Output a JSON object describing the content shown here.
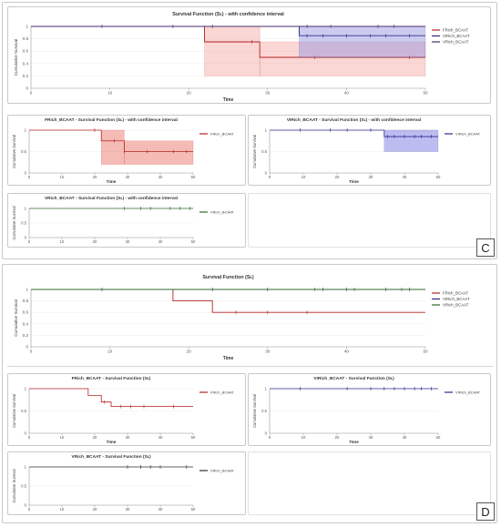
{
  "panel_labels": [
    "C",
    "D"
  ],
  "chart_data": [
    {
      "type": "line",
      "title": "Survival Function (Sʟ) - with confidence interval",
      "xlabel": "Time",
      "ylabel": "Cumulative Survival",
      "xlim": [
        0,
        50
      ],
      "ylim": [
        0,
        1
      ],
      "xticks": [
        0,
        10,
        20,
        30,
        40,
        50
      ],
      "xtick_labels": [
        "0",
        "10",
        "20",
        "30",
        "40",
        "50"
      ],
      "yticks": [
        0,
        0.2,
        0.4,
        0.6,
        0.8,
        1
      ],
      "ytick_labels": [
        "0",
        "0.2",
        "0.4",
        "0.6",
        "0.8",
        "1"
      ],
      "legend_position": "right",
      "series": [
        {
          "name": "FRich_BCAAT",
          "color": "#b22222",
          "x": [
            0,
            22,
            29,
            50
          ],
          "y": [
            1,
            0.75,
            0.5,
            0.5
          ],
          "ci": [
            [
              0,
              22,
              1,
              1
            ],
            [
              22,
              29,
              0.2,
              1
            ],
            [
              29,
              50,
              0.2,
              0.75
            ]
          ],
          "ci_color": "#f4a6a0",
          "censor_x": [
            28,
            36,
            48
          ]
        },
        {
          "name": "VIRich_BCAAT",
          "color": "#2b2b8c",
          "x": [
            0,
            34,
            50
          ],
          "y": [
            1,
            0.85,
            0.85
          ],
          "ci": [
            [
              34,
              50,
              0.5,
              1
            ]
          ],
          "ci_color": "#8f8fe0",
          "censor_x": [
            9,
            18,
            23,
            35,
            37,
            40,
            43,
            45,
            48
          ]
        },
        {
          "name": "VRich_BCAAT",
          "color": "#4b2e6b",
          "x": [
            0,
            50
          ],
          "y": [
            1,
            1
          ],
          "ci": [],
          "ci_color": "#cf92e8",
          "censor_x": [
            35,
            38,
            44,
            46
          ]
        }
      ]
    },
    {
      "type": "line",
      "title": "FRich_BCAAT - Survival Function (Sʟ) - with confidence interval",
      "xlabel": "Time",
      "ylabel": "Cumulative Survival",
      "xlim": [
        0,
        50
      ],
      "ylim": [
        0,
        1
      ],
      "xticks": [
        0,
        10,
        20,
        30,
        40,
        50
      ],
      "xtick_labels": [
        "0",
        "10",
        "20",
        "30",
        "40",
        "50"
      ],
      "yticks": [
        0,
        0.5,
        1
      ],
      "ytick_labels": [
        "0",
        "0.5",
        "1"
      ],
      "legend_position": "right",
      "series": [
        {
          "name": "FRich_BCAAT",
          "color": "#b22222",
          "x": [
            0,
            22,
            29,
            50
          ],
          "y": [
            1,
            0.75,
            0.5,
            0.5
          ],
          "ci": [
            [
              22,
              29,
              0.2,
              1
            ],
            [
              29,
              50,
              0.2,
              0.75
            ]
          ],
          "ci_color": "#e96a5c",
          "censor_x": [
            20,
            26,
            29,
            36,
            44,
            48
          ]
        }
      ]
    },
    {
      "type": "line",
      "title": "VIRich_BCAAT - Survival Function (Sʟ) - with confidence interval",
      "xlabel": "Time",
      "ylabel": "Cumulative Survival",
      "xlim": [
        0,
        50
      ],
      "ylim": [
        0,
        1
      ],
      "xticks": [
        0,
        10,
        20,
        30,
        40,
        50
      ],
      "xtick_labels": [
        "0",
        "10",
        "20",
        "30",
        "40",
        "50"
      ],
      "yticks": [
        0,
        0.5,
        1
      ],
      "ytick_labels": [
        "0",
        "0.5",
        "1"
      ],
      "legend_position": "right",
      "series": [
        {
          "name": "VIRich_BCAAT",
          "color": "#2b2b8c",
          "x": [
            0,
            34,
            50
          ],
          "y": [
            1,
            0.85,
            0.85
          ],
          "ci": [
            [
              34,
              50,
              0.5,
              1
            ]
          ],
          "ci_color": "#6a6ae0",
          "censor_x": [
            9,
            18,
            23,
            30,
            35,
            37,
            40,
            43,
            45,
            48
          ]
        }
      ]
    },
    {
      "type": "line",
      "title": "VRich_BCAAT - Survival Function (Sʟ) - with confidence interval",
      "xlabel": "",
      "ylabel": "Cumulative Survival",
      "xlim": [
        0,
        50
      ],
      "ylim": [
        0,
        1
      ],
      "xticks": [
        0,
        10,
        20,
        30,
        40,
        50
      ],
      "xtick_labels": [
        "0",
        "10",
        "20",
        "30",
        "40",
        "50"
      ],
      "yticks": [
        0,
        0.5,
        1
      ],
      "ytick_labels": [
        "0",
        "0.5",
        "1"
      ],
      "legend_position": "right",
      "series": [
        {
          "name": "VRich_BCAAT",
          "color": "#2f6b2f",
          "x": [
            0,
            50
          ],
          "y": [
            1,
            1
          ],
          "ci": [],
          "ci_color": "#9bd19b",
          "censor_x": [
            29,
            34,
            37,
            43,
            46,
            49
          ]
        }
      ]
    },
    {
      "type": "line",
      "title": "Survival Function (Sʟ)",
      "xlabel": "Time",
      "ylabel": "Cumulative Survival",
      "xlim": [
        0,
        50
      ],
      "ylim": [
        0,
        1
      ],
      "xticks": [
        0,
        10,
        20,
        30,
        40,
        50
      ],
      "xtick_labels": [
        "0",
        "10",
        "20",
        "30",
        "40",
        "50"
      ],
      "yticks": [
        0,
        0.2,
        0.4,
        0.6,
        0.8,
        1
      ],
      "ytick_labels": [
        "0",
        "0.2",
        "0.4",
        "0.6",
        "0.8",
        "1"
      ],
      "legend_position": "right",
      "series": [
        {
          "name": "FRich_BCAAT",
          "color": "#b22222",
          "x": [
            0,
            18,
            23,
            50
          ],
          "y": [
            1,
            0.8,
            0.6,
            0.6
          ],
          "ci": [],
          "ci_color": "",
          "censor_x": [
            26,
            30,
            35
          ]
        },
        {
          "name": "VIRich_BCAAT",
          "color": "#2b2b8c",
          "x": [
            0,
            50
          ],
          "y": [
            1,
            1
          ],
          "ci": [],
          "ci_color": "",
          "censor_x": [
            9,
            23,
            30,
            37,
            40,
            45,
            48
          ]
        },
        {
          "name": "VRich_BCAAT",
          "color": "#2f6b2f",
          "x": [
            0,
            50
          ],
          "y": [
            1,
            1
          ],
          "ci": [],
          "ci_color": "",
          "censor_x": [
            36,
            41,
            47
          ]
        }
      ]
    },
    {
      "type": "line",
      "title": "FRich_BCAAT - Survival Function (Sʟ)",
      "xlabel": "Time",
      "ylabel": "Cumulative Survival",
      "xlim": [
        0,
        50
      ],
      "ylim": [
        0,
        1
      ],
      "xticks": [
        0,
        10,
        20,
        30,
        40,
        50
      ],
      "xtick_labels": [
        "0",
        "10",
        "20",
        "30",
        "40",
        "50"
      ],
      "yticks": [
        0,
        0.5,
        1
      ],
      "ytick_labels": [
        "0",
        "0.5",
        "1"
      ],
      "legend_position": "right",
      "series": [
        {
          "name": "FRich_BCAAT",
          "color": "#b22222",
          "x": [
            0,
            18,
            22,
            25,
            50
          ],
          "y": [
            1,
            0.85,
            0.7,
            0.6,
            0.6
          ],
          "ci": [],
          "ci_color": "",
          "censor_x": [
            23,
            28,
            31,
            35,
            44
          ]
        }
      ]
    },
    {
      "type": "line",
      "title": "VIRich_BCAAT - Survival Function (Sʟ)",
      "xlabel": "Time",
      "ylabel": "Cumulative Survival",
      "xlim": [
        0,
        50
      ],
      "ylim": [
        0,
        1
      ],
      "xticks": [
        0,
        10,
        20,
        30,
        40,
        50
      ],
      "xtick_labels": [
        "0",
        "10",
        "20",
        "30",
        "40",
        "50"
      ],
      "yticks": [
        0,
        0.5,
        1
      ],
      "ytick_labels": [
        "0",
        "0.5",
        "1"
      ],
      "legend_position": "right",
      "series": [
        {
          "name": "VIRich_BCAAT",
          "color": "#2b2b8c",
          "x": [
            0,
            50
          ],
          "y": [
            1,
            1
          ],
          "ci": [],
          "ci_color": "",
          "censor_x": [
            9,
            23,
            30,
            34,
            37,
            40,
            43,
            45,
            48
          ]
        }
      ]
    },
    {
      "type": "line",
      "title": "VRich_BCAAT - Survival Function (Sʟ)",
      "xlabel": "",
      "ylabel": "Cumulative Survival",
      "xlim": [
        0,
        50
      ],
      "ylim": [
        0,
        1
      ],
      "xticks": [
        0,
        10,
        20,
        30,
        40,
        50
      ],
      "xtick_labels": [
        "0",
        "10",
        "20",
        "30",
        "40",
        "50"
      ],
      "yticks": [
        0,
        0.5,
        1
      ],
      "ytick_labels": [
        "0",
        "0.5",
        "1"
      ],
      "legend_position": "right",
      "series": [
        {
          "name": "VRich_BCAAT",
          "color": "#2f2f2f",
          "x": [
            0,
            50
          ],
          "y": [
            1,
            1
          ],
          "ci": [],
          "ci_color": "",
          "censor_x": [
            30,
            34,
            37,
            40,
            48
          ]
        }
      ]
    }
  ]
}
